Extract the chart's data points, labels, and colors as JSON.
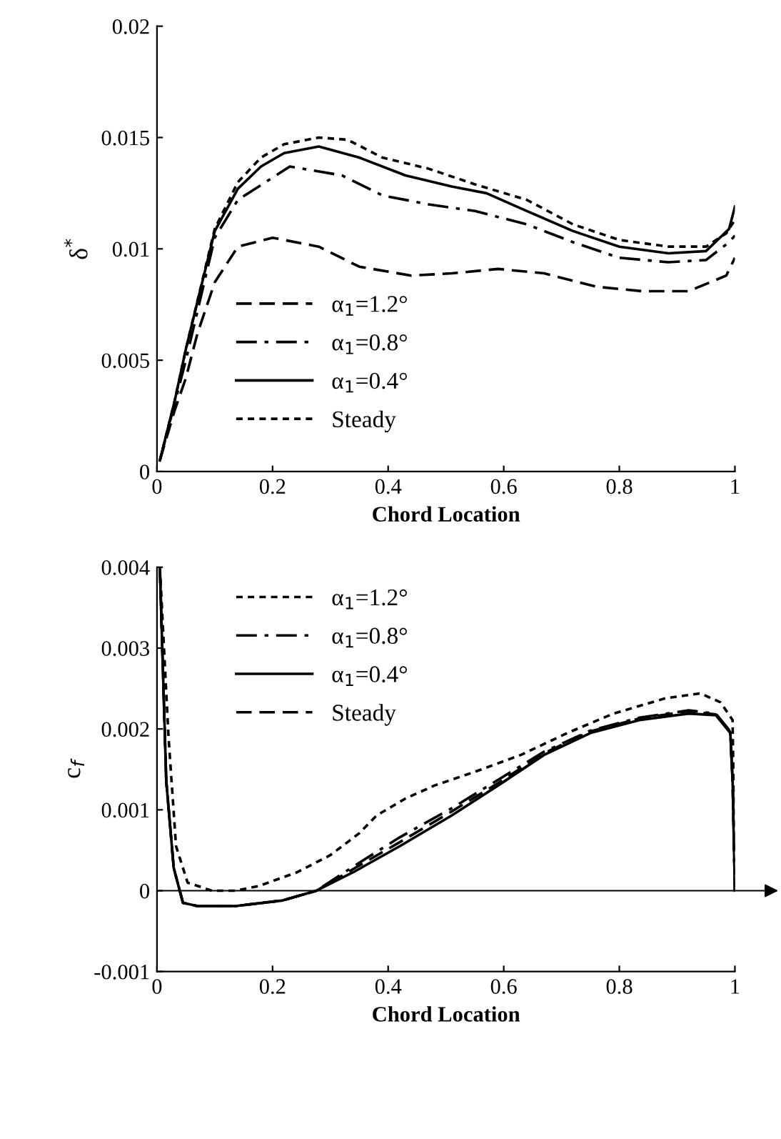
{
  "chart_data": [
    {
      "type": "line",
      "xlabel": "Chord Location",
      "ylabel": "δ$^{*}$",
      "xlim": [
        0,
        1
      ],
      "ylim": [
        0,
        0.02
      ],
      "xticks": [
        0,
        0.2,
        0.4,
        0.6,
        0.8,
        1
      ],
      "yticks": [
        0,
        0.005,
        0.01,
        0.015,
        0.02
      ],
      "legend": "bottom left",
      "grid": false,
      "series": [
        {
          "name": "α$_{1}$=1.2°",
          "color": "#000000",
          "line_style": "dashed",
          "x": [
            0.005,
            0.03,
            0.05,
            0.07,
            0.1,
            0.14,
            0.2,
            0.28,
            0.35,
            0.44,
            0.51,
            0.59,
            0.67,
            0.76,
            0.84,
            0.92,
            0.985,
            1.0
          ],
          "values": [
            0.0005,
            0.0027,
            0.0042,
            0.0062,
            0.0085,
            0.0101,
            0.0105,
            0.0101,
            0.0092,
            0.0088,
            0.0089,
            0.0091,
            0.0089,
            0.0083,
            0.0081,
            0.0081,
            0.0088,
            0.0096
          ]
        },
        {
          "name": "α$_{1}$=0.8°",
          "color": "#000000",
          "line_style": "dashdot",
          "x": [
            0.005,
            0.03,
            0.05,
            0.1,
            0.14,
            0.23,
            0.32,
            0.39,
            0.47,
            0.55,
            0.64,
            0.72,
            0.8,
            0.885,
            0.95,
            0.99,
            1.0
          ],
          "values": [
            0.0005,
            0.003,
            0.005,
            0.0105,
            0.0122,
            0.0137,
            0.0133,
            0.0124,
            0.012,
            0.0117,
            0.0111,
            0.0103,
            0.0096,
            0.0094,
            0.0095,
            0.0103,
            0.0106
          ]
        },
        {
          "name": "α$_{1}$=0.4°",
          "color": "#000000",
          "line_style": "solid",
          "x": [
            0.005,
            0.03,
            0.05,
            0.1,
            0.14,
            0.18,
            0.22,
            0.28,
            0.35,
            0.43,
            0.51,
            0.57,
            0.64,
            0.72,
            0.8,
            0.885,
            0.95,
            0.99,
            1.0
          ],
          "values": [
            0.0005,
            0.0031,
            0.0055,
            0.0108,
            0.0127,
            0.0137,
            0.0143,
            0.0146,
            0.0141,
            0.0133,
            0.0128,
            0.0125,
            0.0117,
            0.0108,
            0.0101,
            0.0098,
            0.0099,
            0.0109,
            0.0119
          ]
        },
        {
          "name": "Steady",
          "color": "#000000",
          "line_style": "dotted",
          "x": [
            0.005,
            0.03,
            0.05,
            0.1,
            0.14,
            0.18,
            0.22,
            0.28,
            0.33,
            0.39,
            0.47,
            0.55,
            0.64,
            0.72,
            0.8,
            0.885,
            0.95,
            0.985,
            1.0
          ],
          "values": [
            0.0005,
            0.0031,
            0.0055,
            0.0109,
            0.013,
            0.0141,
            0.0147,
            0.015,
            0.0149,
            0.0141,
            0.0136,
            0.0129,
            0.0122,
            0.0111,
            0.0104,
            0.0101,
            0.0101,
            0.0107,
            0.0113
          ]
        }
      ]
    },
    {
      "type": "line",
      "xlabel": "Chord Location",
      "ylabel": "c$_{f}$",
      "xlim": [
        0,
        1
      ],
      "ylim": [
        -0.001,
        0.004
      ],
      "xticks": [
        0,
        0.2,
        0.4,
        0.6,
        0.8,
        1
      ],
      "yticks": [
        -0.001,
        0,
        0.001,
        0.002,
        0.003,
        0.004
      ],
      "legend": "top left",
      "grid": false,
      "ref_lines": [
        {
          "axis": "y",
          "value": 0,
          "color": "#000000"
        }
      ],
      "series": [
        {
          "name": "α$_{1}$=1.2°",
          "color": "#000000",
          "line_style": "dotted",
          "x": [
            0.005,
            0.02,
            0.033,
            0.053,
            0.095,
            0.136,
            0.177,
            0.243,
            0.3,
            0.35,
            0.38,
            0.43,
            0.48,
            0.55,
            0.63,
            0.71,
            0.79,
            0.88,
            0.94,
            0.975,
            0.996,
            1.0
          ],
          "values": [
            0.004,
            0.0019,
            0.00055,
            0.0001,
            0.0,
            0.0,
            6e-05,
            0.00023,
            0.00044,
            0.00071,
            0.00093,
            0.00114,
            0.0013,
            0.00147,
            0.00168,
            0.00195,
            0.00219,
            0.00238,
            0.00244,
            0.00233,
            0.00211,
            0.0
          ]
        },
        {
          "name": "α$_{1}$=0.8°",
          "color": "#000000",
          "line_style": "dashdot",
          "x": [
            0.005,
            0.016,
            0.029,
            0.045,
            0.07,
            0.136,
            0.218,
            0.276,
            0.34,
            0.42,
            0.51,
            0.59,
            0.67,
            0.75,
            0.835,
            0.92,
            0.967,
            0.992,
            0.996,
            1.0
          ],
          "values": [
            0.004,
            0.00136,
            0.00028,
            -0.00015,
            -0.00019,
            -0.00019,
            -0.00012,
            0.0,
            0.0003,
            0.00066,
            0.00102,
            0.00137,
            0.00172,
            0.00198,
            0.00214,
            0.00223,
            0.00219,
            0.00197,
            0.00136,
            0.0
          ]
        },
        {
          "name": "α$_{1}$=0.4°",
          "color": "#000000",
          "line_style": "solid",
          "x": [
            0.005,
            0.016,
            0.029,
            0.045,
            0.07,
            0.136,
            0.218,
            0.276,
            0.34,
            0.42,
            0.51,
            0.59,
            0.67,
            0.75,
            0.835,
            0.92,
            0.967,
            0.992,
            0.996,
            1.0
          ],
          "values": [
            0.004,
            0.00136,
            0.00028,
            -0.00015,
            -0.00019,
            -0.00019,
            -0.00012,
            0.0,
            0.00023,
            0.00055,
            0.00093,
            0.0013,
            0.00168,
            0.00195,
            0.00211,
            0.00219,
            0.00217,
            0.00195,
            0.00136,
            0.0
          ]
        },
        {
          "name": "Steady",
          "color": "#000000",
          "line_style": "dashed",
          "x": [
            0.005,
            0.016,
            0.029,
            0.045,
            0.07,
            0.136,
            0.218,
            0.276,
            0.34,
            0.42,
            0.51,
            0.59,
            0.67,
            0.75,
            0.835,
            0.92,
            0.967,
            0.992,
            0.996,
            1.0
          ],
          "values": [
            0.004,
            0.00136,
            0.00028,
            -0.00015,
            -0.00019,
            -0.00019,
            -0.00012,
            0.0,
            0.00027,
            0.0006,
            0.00098,
            0.00133,
            0.0017,
            0.00197,
            0.00213,
            0.00222,
            0.00218,
            0.00196,
            0.00136,
            0.0
          ]
        }
      ]
    }
  ]
}
